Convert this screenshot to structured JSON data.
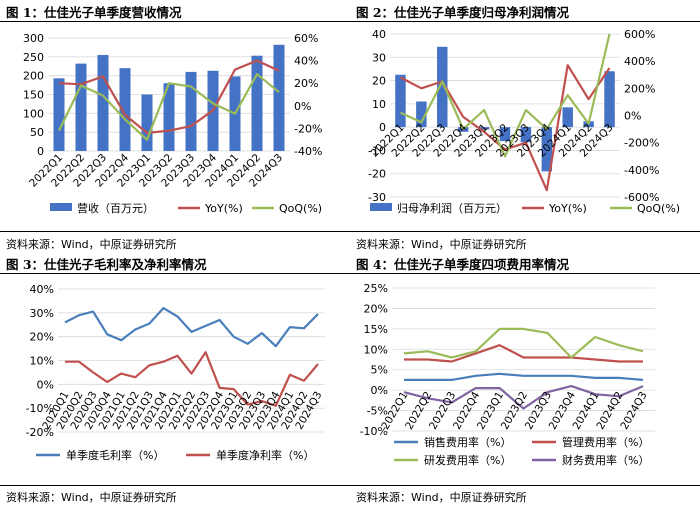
{
  "source_note": "资料来源：Wind，中原证券研究所",
  "colors": {
    "bar": "#4472C4",
    "red": "#C0504D",
    "green": "#9BBB59",
    "purple": "#8064A2",
    "blue": "#4A7EBB"
  },
  "chart_data": [
    {
      "type": "bar+line",
      "title": "图 1：仕佳光子单季度营收情况",
      "categories": [
        "2022Q1",
        "2022Q2",
        "2022Q3",
        "2022Q4",
        "2023Q1",
        "2023Q2",
        "2023Q3",
        "2023Q4",
        "2024Q1",
        "2024Q2",
        "2024Q3"
      ],
      "bars": {
        "name": "营收（百万元）",
        "values": [
          193,
          232,
          255,
          220,
          150,
          180,
          210,
          213,
          198,
          253,
          282
        ]
      },
      "lines": [
        {
          "name": "YoY(%)",
          "values": [
            20,
            19,
            26,
            -8,
            -24,
            -22,
            -18,
            -4,
            32,
            40,
            31
          ]
        },
        {
          "name": "QoQ(%)",
          "values": [
            -22,
            18,
            9,
            -12,
            -30,
            20,
            17,
            2,
            -7,
            28,
            12
          ]
        }
      ],
      "yticks_left": [
        "0",
        "50",
        "100",
        "150",
        "200",
        "250",
        "300"
      ],
      "yticks_right": [
        "-40%",
        "-20%",
        "0%",
        "20%",
        "40%",
        "60%"
      ],
      "ylim_left": [
        0,
        300
      ],
      "ylim_right": [
        -40,
        60
      ]
    },
    {
      "type": "bar+line",
      "title": "图 2：仕佳光子单季度归母净利润情况",
      "categories": [
        "2022Q1",
        "2022Q2",
        "2022Q3",
        "2022Q4",
        "2023Q1",
        "2023Q2",
        "2023Q3",
        "2023Q4",
        "2024Q1",
        "2024Q2",
        "2024Q3"
      ],
      "bars": {
        "name": "归母净利润（百万元）",
        "values": [
          22.5,
          11,
          34.5,
          -2,
          -1,
          -6,
          -6.5,
          -19,
          8.5,
          2.5,
          24
        ]
      },
      "lines": [
        {
          "name": "YoY(%)",
          "values": [
            280,
            200,
            250,
            -10,
            -120,
            -250,
            -200,
            -550,
            370,
            120,
            350
          ]
        },
        {
          "name": "QoQ(%)",
          "values": [
            20,
            -50,
            250,
            -100,
            40,
            -300,
            40,
            -100,
            150,
            -60,
            600
          ]
        }
      ],
      "yticks_left": [
        "-30",
        "-20",
        "-10",
        "0",
        "10",
        "20",
        "30",
        "40"
      ],
      "yticks_right": [
        "-600%",
        "-400%",
        "-200%",
        "0%",
        "200%",
        "400%",
        "600%"
      ],
      "ylim_left": [
        -30,
        40
      ],
      "ylim_right": [
        -600,
        600
      ]
    },
    {
      "type": "line",
      "title": "图 3：仕佳光子毛利率及净利率情况",
      "categories": [
        "2020Q1",
        "2020Q2",
        "2020Q3",
        "2020Q4",
        "2021Q1",
        "2021Q2",
        "2021Q3",
        "2021Q4",
        "2022Q1",
        "2022Q2",
        "2022Q3",
        "2022Q4",
        "2023Q1",
        "2023Q2",
        "2023Q3",
        "2023Q4",
        "2024Q1",
        "2024Q2",
        "2024Q3"
      ],
      "series": [
        {
          "name": "单季度毛利率（%）",
          "values": [
            26,
            29,
            30.5,
            21,
            18.5,
            23,
            25.5,
            32,
            28.5,
            22,
            24.5,
            27,
            20,
            17,
            21.5,
            16,
            24,
            23.5,
            29.5
          ]
        },
        {
          "name": "单季度净利率（%）",
          "values": [
            9.5,
            9.5,
            5,
            1,
            4.5,
            3,
            8,
            9.5,
            12,
            4.5,
            13.5,
            -1.5,
            -2,
            -8.5,
            -7,
            -9,
            4,
            1.5,
            8.5
          ]
        }
      ],
      "yticks": [
        "-20%",
        "-10%",
        "0%",
        "10%",
        "20%",
        "30%",
        "40%"
      ],
      "ylim": [
        -20,
        40
      ]
    },
    {
      "type": "line",
      "title": "图 4：仕佳光子单季度四项费用率情况",
      "categories": [
        "2022Q1",
        "2022Q2",
        "2022Q3",
        "2022Q4",
        "2023Q1",
        "2023Q2",
        "2023Q3",
        "2023Q4",
        "2024Q1",
        "2024Q2",
        "2024Q3"
      ],
      "series": [
        {
          "name": "销售费用率（%）",
          "values": [
            2.5,
            2.5,
            2.5,
            3.5,
            4,
            3.5,
            3.5,
            3.5,
            3,
            3,
            2.5
          ]
        },
        {
          "name": "管理费用率（%）",
          "values": [
            7.5,
            7.5,
            7,
            9,
            11,
            8,
            8,
            8,
            7.5,
            7,
            7
          ]
        },
        {
          "name": "研发费用率（%）",
          "values": [
            9,
            9.5,
            8,
            9.5,
            15,
            15,
            14,
            8,
            13,
            11,
            9.5
          ]
        },
        {
          "name": "财务费用率（%）",
          "values": [
            -0.5,
            -2,
            -3,
            0.5,
            0.5,
            -4.5,
            -0.5,
            1,
            -1,
            -1.5,
            1
          ]
        }
      ],
      "yticks": [
        "-10%",
        "-5%",
        "0%",
        "5%",
        "10%",
        "15%",
        "20%",
        "25%"
      ],
      "ylim": [
        -10,
        25
      ]
    }
  ]
}
